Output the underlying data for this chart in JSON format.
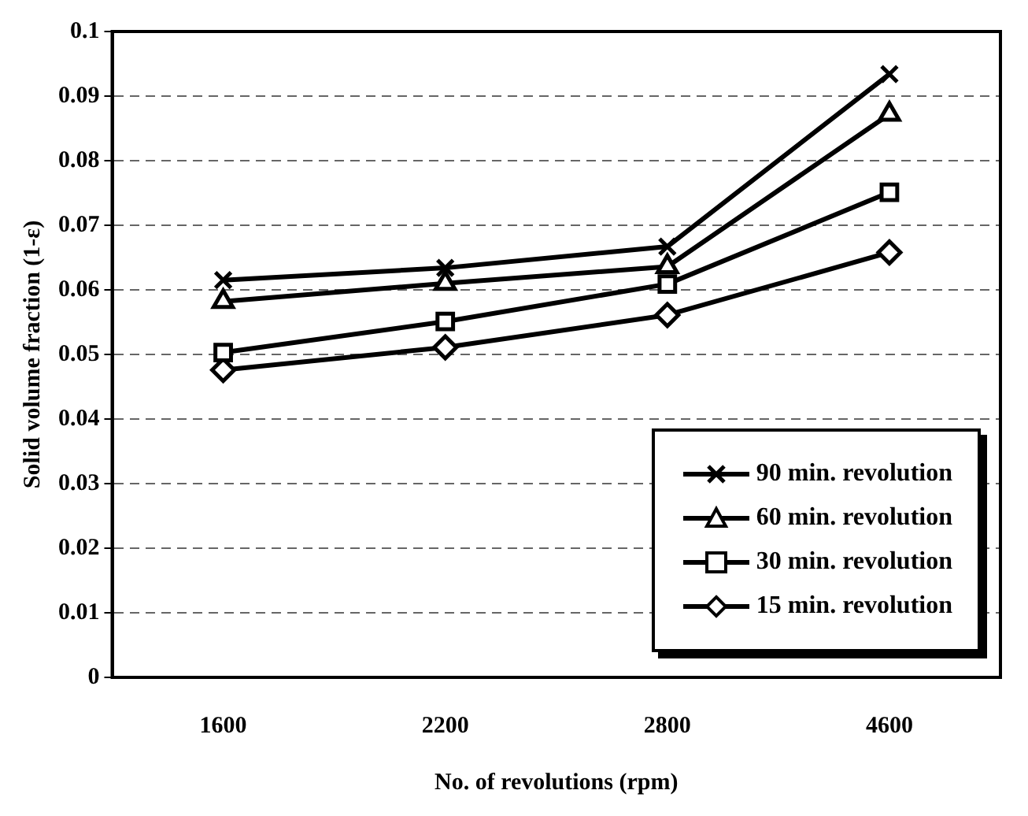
{
  "chart_data": {
    "type": "line",
    "xlabel": "No. of revolutions (rpm)",
    "ylabel": "Solid volume fraction (1-ε)",
    "categories": [
      "1600",
      "2200",
      "2800",
      "4600"
    ],
    "series": [
      {
        "name": "90 min. revolution",
        "color": "#000000",
        "marker": "cross",
        "values": [
          0.0615,
          0.0634,
          0.0667,
          0.0934
        ]
      },
      {
        "name": "60 min. revolution",
        "color": "#000000",
        "marker": "triangle",
        "values": [
          0.0582,
          0.061,
          0.0636,
          0.0872
        ]
      },
      {
        "name": "30 min. revolution",
        "color": "#000000",
        "marker": "square",
        "values": [
          0.0503,
          0.0551,
          0.0609,
          0.0751
        ]
      },
      {
        "name": "15 min. revolution",
        "color": "#000000",
        "marker": "diamond",
        "values": [
          0.0476,
          0.0511,
          0.0561,
          0.0658
        ]
      }
    ],
    "ylim": [
      0,
      0.1
    ],
    "yticks": [
      0,
      0.01,
      0.02,
      0.03,
      0.04,
      0.05,
      0.06,
      0.07,
      0.08,
      0.09,
      0.1
    ],
    "grid": "y",
    "legend": "bottom right",
    "line_style": "solid"
  }
}
